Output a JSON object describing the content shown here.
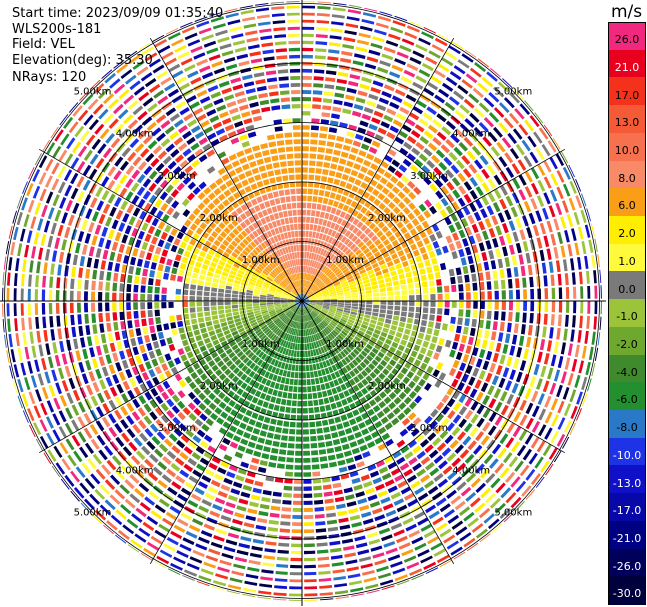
{
  "header": {
    "start_time": "Start time: 2023/09/09 01:35:40",
    "instrument": "WLS200s-181",
    "field": "Field: VEL",
    "elevation": "Elevation(deg): 35.30",
    "nrays": "NRays: 120"
  },
  "colorbar": {
    "unit": "m/s",
    "levels": [
      {
        "label": "26.0",
        "color": "#f0287e",
        "text_color": "#000000"
      },
      {
        "label": "21.0",
        "color": "#e8001e",
        "text_color": "#ffffff"
      },
      {
        "label": "17.0",
        "color": "#f4311a",
        "text_color": "#000000"
      },
      {
        "label": "13.0",
        "color": "#f55a36",
        "text_color": "#000000"
      },
      {
        "label": "10.0",
        "color": "#f7714e",
        "text_color": "#000000"
      },
      {
        "label": "8.0",
        "color": "#f88a68",
        "text_color": "#000000"
      },
      {
        "label": "6.0",
        "color": "#fa9e18",
        "text_color": "#000000"
      },
      {
        "label": "2.0",
        "color": "#ffee00",
        "text_color": "#000000"
      },
      {
        "label": "1.0",
        "color": "#fffb3c",
        "text_color": "#000000"
      },
      {
        "label": "0.0",
        "color": "#7a7a7a",
        "text_color": "#000000"
      },
      {
        "label": "-1.0",
        "color": "#9bc43a",
        "text_color": "#000000"
      },
      {
        "label": "-2.0",
        "color": "#6fa82e",
        "text_color": "#000000"
      },
      {
        "label": "-4.0",
        "color": "#3f8a2c",
        "text_color": "#000000"
      },
      {
        "label": "-6.0",
        "color": "#238f2e",
        "text_color": "#000000"
      },
      {
        "label": "-8.0",
        "color": "#2a78c8",
        "text_color": "#000000"
      },
      {
        "label": "-10.0",
        "color": "#1e32e6",
        "text_color": "#ffffff"
      },
      {
        "label": "-13.0",
        "color": "#1010c8",
        "text_color": "#ffffff"
      },
      {
        "label": "-17.0",
        "color": "#0808a8",
        "text_color": "#ffffff"
      },
      {
        "label": "-21.0",
        "color": "#000082",
        "text_color": "#ffffff"
      },
      {
        "label": "-26.0",
        "color": "#00005a",
        "text_color": "#ffffff"
      },
      {
        "label": "-30.0",
        "color": "#00003c",
        "text_color": "#ffffff"
      }
    ]
  },
  "chart_data": {
    "type": "ppi",
    "title": "Start time: 2023/09/09 01:35:40",
    "field": "VEL",
    "units": "m/s",
    "elevation_deg": 35.3,
    "n_rays": 120,
    "range_rings_km": [
      1,
      2,
      3,
      4,
      5
    ],
    "range_ring_labels": [
      "1.00km",
      "2.00km",
      "3.00km",
      "4.00km",
      "5.00km"
    ],
    "max_range_km": 5.1,
    "spoke_angles_deg": [
      0,
      30,
      60,
      90,
      120,
      150,
      180,
      210,
      240,
      270,
      300,
      330
    ],
    "clean_range_km": {
      "north": 2.9,
      "east": 2.2,
      "south": 2.9,
      "west": 1.9
    },
    "velocity_pattern": "positive (receding, 6-10 m/s) to the north, negative (approaching, -4 to -8 m/s) to the south; noise beyond ~2-3 km",
    "color_scale": "see colorbar.levels"
  }
}
